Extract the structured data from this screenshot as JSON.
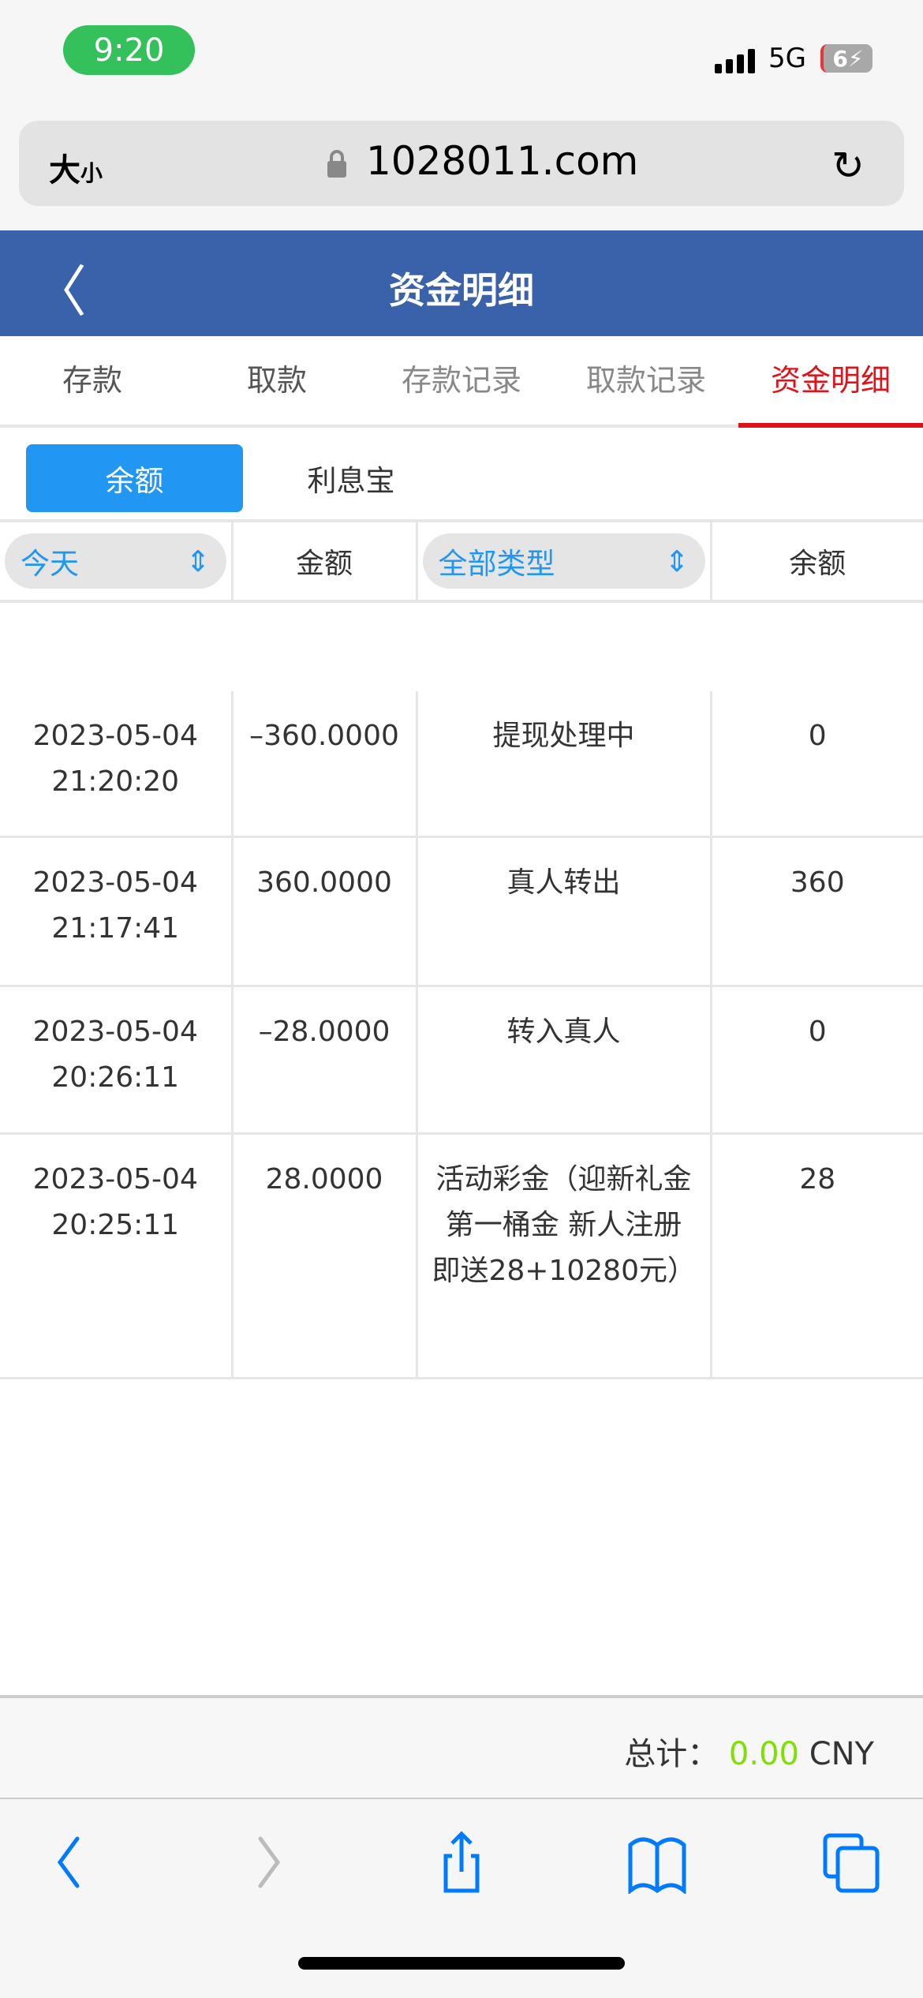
{
  "status_bar": {
    "time": "9:20",
    "network": "5G",
    "battery": "6"
  },
  "browser": {
    "text_size": "大",
    "text_size_small": "小",
    "url": "1028011.com"
  },
  "header": {
    "title": "资金明细"
  },
  "tabs": [
    {
      "label": "存款"
    },
    {
      "label": "取款"
    },
    {
      "label": "存款记录"
    },
    {
      "label": "取款记录"
    },
    {
      "label": "资金明细",
      "active": true
    }
  ],
  "subtabs": [
    {
      "label": "余额",
      "active": true
    },
    {
      "label": "利息宝"
    }
  ],
  "table": {
    "date_filter": "今天",
    "amount_header": "金额",
    "type_filter": "全部类型",
    "balance_header": "余额",
    "rows": [
      {
        "date": "2023-05-04",
        "time": "21:20:20",
        "amount": "–360.0000",
        "type": "提现处理中",
        "balance": "0"
      },
      {
        "date": "2023-05-04",
        "time": "21:17:41",
        "amount": "360.0000",
        "type": "真人转出",
        "balance": "360"
      },
      {
        "date": "2023-05-04",
        "time": "20:26:11",
        "amount": "–28.0000",
        "type": "转入真人",
        "balance": "0"
      },
      {
        "date": "2023-05-04",
        "time": "20:25:11",
        "amount": "28.0000",
        "type": "活动彩金（迎新礼金 第一桶金 新人注册即送28+10280元）",
        "balance": "28"
      }
    ]
  },
  "footer": {
    "total_label": "总计：",
    "total_value": "0.00",
    "currency": "CNY"
  },
  "colors": {
    "header": "#3a62aa",
    "active_tab": "#e0131b",
    "accent": "#2196f3",
    "total": "#7fe000"
  }
}
